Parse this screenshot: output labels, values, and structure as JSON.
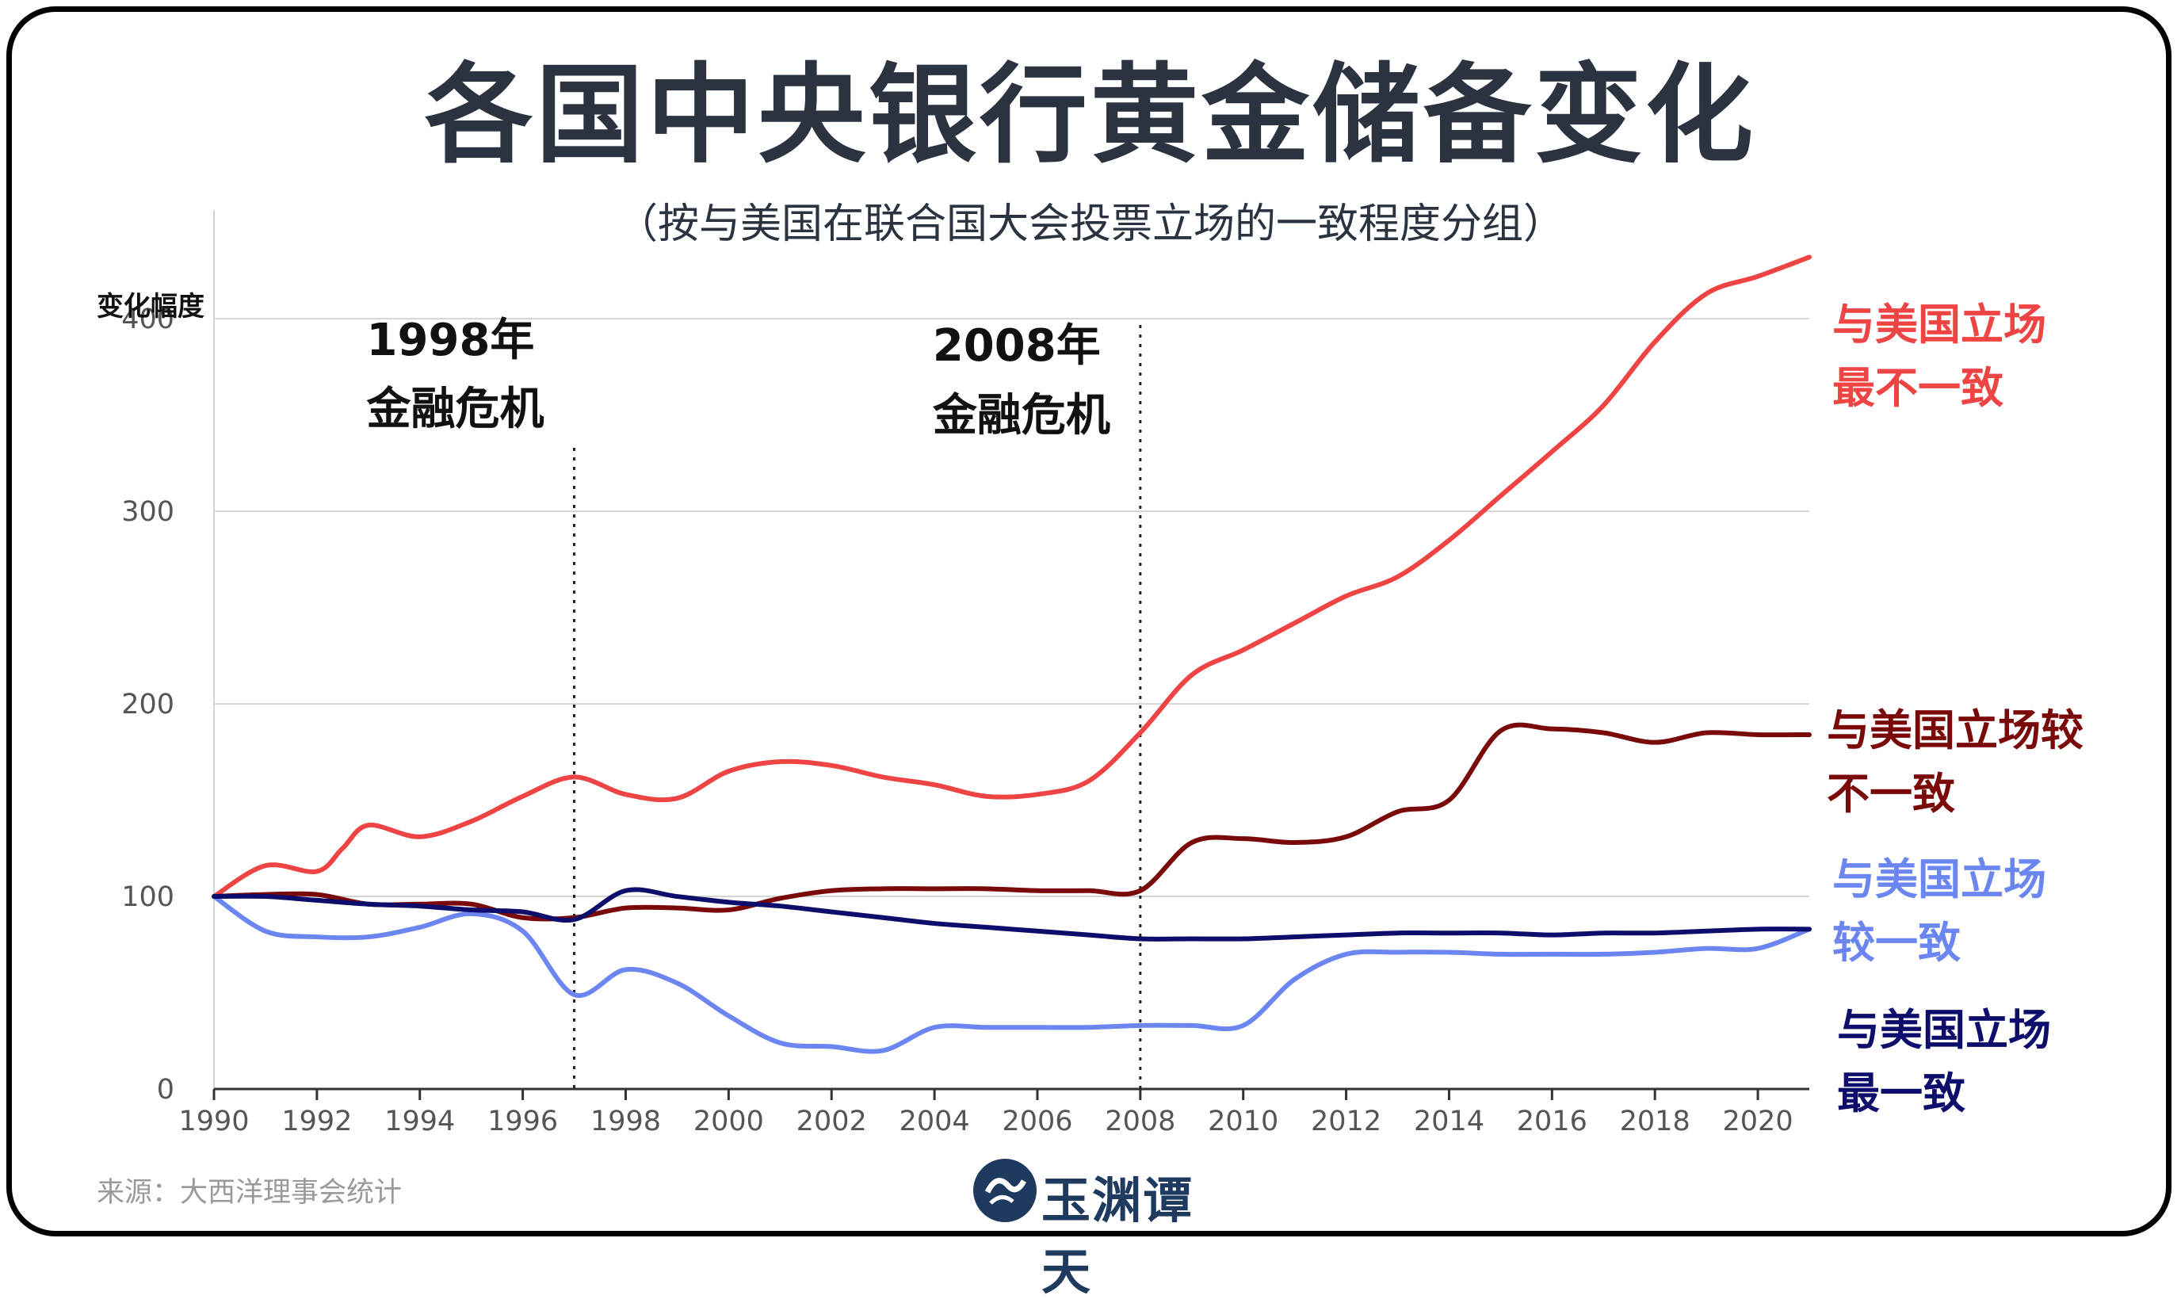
{
  "header": {
    "title": "各国中央银行黄金储备变化",
    "subtitle": "（按与美国在联合国大会投票立场的一致程度分组）"
  },
  "footer": {
    "source": "来源：大西洋理事会统计",
    "logo_text": "玉渊谭天"
  },
  "chart_data": {
    "type": "line",
    "title": "各国中央银行黄金储备变化",
    "subtitle": "（按与美国在联合国大会投票立场的一致程度分组）",
    "ylabel": "变化幅度",
    "xlabel": "",
    "xlim": [
      1990,
      2021
    ],
    "ylim": [
      0,
      440
    ],
    "x_ticks": [
      1990,
      1992,
      1994,
      1996,
      1998,
      2000,
      2002,
      2004,
      2006,
      2008,
      2010,
      2012,
      2014,
      2016,
      2018,
      2020
    ],
    "y_ticks": [
      0,
      100,
      200,
      300,
      400
    ],
    "grid": "horizontal",
    "annotations": [
      {
        "x": 1997,
        "line1": "1998年",
        "line2": "金融危机"
      },
      {
        "x": 2008,
        "line1": "2008年",
        "line2": "金融危机"
      }
    ],
    "series": [
      {
        "name": "与美国立场最不一致",
        "label_lines": [
          "与美国立场",
          "最不一致"
        ],
        "color": "#ef4444",
        "x": [
          1990,
          1991,
          1992,
          1992.5,
          1993,
          1994,
          1995,
          1996,
          1997,
          1998,
          1999,
          2000,
          2001,
          2002,
          2003,
          2004,
          2005,
          2006,
          2007,
          2008,
          2009,
          2010,
          2011,
          2012,
          2013,
          2014,
          2015,
          2016,
          2017,
          2018,
          2019,
          2020,
          2021
        ],
        "y": [
          100,
          116,
          113,
          125,
          137,
          131,
          139,
          152,
          162,
          153,
          151,
          165,
          170,
          168,
          162,
          158,
          152,
          153,
          160,
          185,
          215,
          228,
          242,
          256,
          266,
          285,
          308,
          331,
          355,
          388,
          413,
          422,
          432
        ]
      },
      {
        "name": "与美国立场较不一致",
        "label_lines": [
          "与美国立场较",
          "不一致"
        ],
        "color": "#7a0a0a",
        "x": [
          1990,
          1991,
          1992,
          1993,
          1994,
          1995,
          1996,
          1997,
          1998,
          1999,
          2000,
          2001,
          2002,
          2003,
          2004,
          2005,
          2006,
          2007,
          2008,
          2009,
          2010,
          2011,
          2012,
          2013,
          2014,
          2015,
          2016,
          2017,
          2018,
          2019,
          2020,
          2021
        ],
        "y": [
          100,
          101,
          101,
          96,
          96,
          96,
          89,
          89,
          94,
          94,
          93,
          99,
          103,
          104,
          104,
          104,
          103,
          103,
          103,
          128,
          130,
          128,
          131,
          144,
          150,
          186,
          187,
          185,
          180,
          185,
          184,
          184
        ]
      },
      {
        "name": "与美国立场较一致",
        "label_lines": [
          "与美国立场",
          "较一致"
        ],
        "color": "#6b86f0",
        "x": [
          1990,
          1991,
          1992,
          1993,
          1994,
          1995,
          1996,
          1997,
          1998,
          1999,
          2000,
          2001,
          2002,
          2003,
          2004,
          2005,
          2006,
          2007,
          2008,
          2009,
          2010,
          2011,
          2012,
          2013,
          2014,
          2015,
          2016,
          2017,
          2018,
          2019,
          2020,
          2021
        ],
        "y": [
          100,
          82,
          79,
          79,
          84,
          91,
          82,
          49,
          62,
          55,
          38,
          24,
          22,
          20,
          32,
          32,
          32,
          32,
          33,
          33,
          33,
          57,
          70,
          71,
          71,
          70,
          70,
          70,
          71,
          73,
          73,
          83
        ]
      },
      {
        "name": "与美国立场最一致",
        "label_lines": [
          "与美国立场",
          "最一致"
        ],
        "color": "#0d0d6b",
        "x": [
          1990,
          1991,
          1992,
          1993,
          1994,
          1995,
          1996,
          1997,
          1998,
          1999,
          2000,
          2001,
          2002,
          2003,
          2004,
          2005,
          2006,
          2007,
          2008,
          2009,
          2010,
          2011,
          2012,
          2013,
          2014,
          2015,
          2016,
          2017,
          2018,
          2019,
          2020,
          2021
        ],
        "y": [
          100,
          100,
          98,
          96,
          95,
          93,
          92,
          88,
          103,
          100,
          97,
          95,
          92,
          89,
          86,
          84,
          82,
          80,
          78,
          78,
          78,
          79,
          80,
          81,
          81,
          81,
          80,
          81,
          81,
          82,
          83,
          83
        ]
      }
    ]
  }
}
